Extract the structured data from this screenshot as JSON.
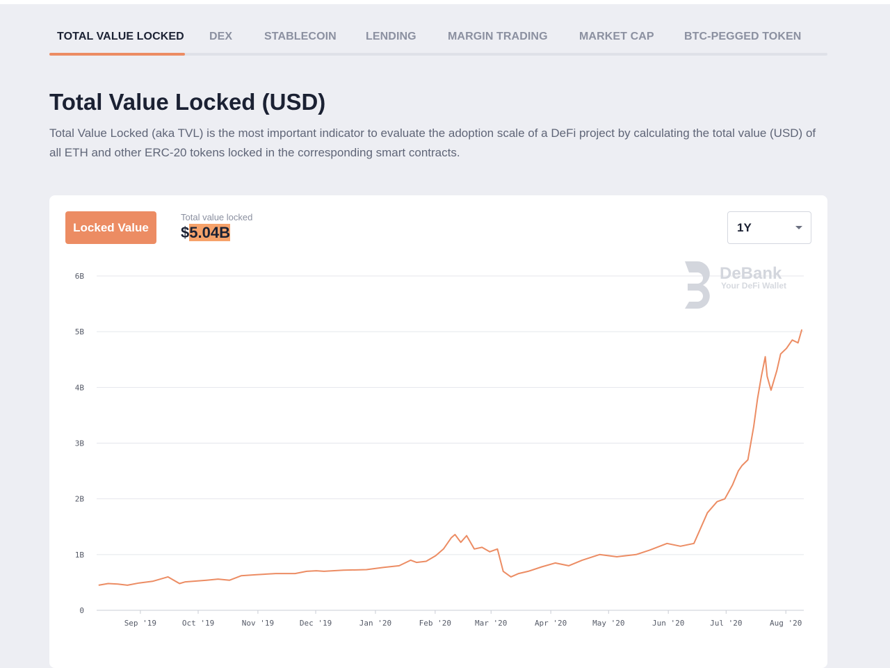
{
  "tabs": [
    {
      "label": "TOTAL VALUE LOCKED",
      "active": true
    },
    {
      "label": "DEX",
      "active": false
    },
    {
      "label": "STABLECOIN",
      "active": false
    },
    {
      "label": "LENDING",
      "active": false
    },
    {
      "label": "MARGIN TRADING",
      "active": false
    },
    {
      "label": "MARKET CAP",
      "active": false
    },
    {
      "label": "BTC-PEGGED TOKEN",
      "active": false
    }
  ],
  "heading": {
    "title": "Total Value Locked (USD)",
    "description": "Total Value Locked (aka TVL) is the most important indicator to evaluate the adoption scale of a DeFi project by calculating the total value (USD) of all ETH and other ERC-20 tokens locked in the corresponding smart contracts."
  },
  "card": {
    "metric_button": "Locked Value",
    "value_label": "Total value locked",
    "value_currency": "$",
    "value_amount": "5.04B",
    "range_select": "1Y"
  },
  "watermark": {
    "brand": "DeBank",
    "tagline": "Your DeFi Wallet"
  },
  "colors": {
    "accent": "#ec8c63",
    "line": "#ec8c63",
    "highlight": "#f6a26a",
    "grid": "#e4e6eb",
    "background": "#edeef3"
  },
  "chart_data": {
    "type": "line",
    "title": "",
    "xlabel": "",
    "ylabel": "",
    "ylim": [
      0,
      6000000000
    ],
    "y_ticks": [
      "0",
      "1B",
      "2B",
      "3B",
      "4B",
      "5B",
      "6B"
    ],
    "x_ticks": [
      "Sep '19",
      "Oct '19",
      "Nov '19",
      "Dec '19",
      "Jan '20",
      "Feb '20",
      "Mar '20",
      "Apr '20",
      "May '20",
      "Jun '20",
      "Jul '20",
      "Aug '20"
    ],
    "grid": "horizontal",
    "series": [
      {
        "values_unit": "USD billions",
        "x": [
          "2019-08-15",
          "2019-08-20",
          "2019-08-25",
          "2019-08-30",
          "2019-09-05",
          "2019-09-12",
          "2019-09-20",
          "2019-09-26",
          "2019-09-29",
          "2019-10-03",
          "2019-10-10",
          "2019-10-16",
          "2019-10-22",
          "2019-10-28",
          "2019-11-01",
          "2019-11-05",
          "2019-11-15",
          "2019-11-25",
          "2019-12-01",
          "2019-12-06",
          "2019-12-10",
          "2019-12-20",
          "2020-01-01",
          "2020-01-10",
          "2020-01-18",
          "2020-01-24",
          "2020-01-27",
          "2020-02-01",
          "2020-02-06",
          "2020-02-10",
          "2020-02-14",
          "2020-02-16",
          "2020-02-19",
          "2020-02-22",
          "2020-02-26",
          "2020-03-01",
          "2020-03-05",
          "2020-03-09",
          "2020-03-12",
          "2020-03-16",
          "2020-03-20",
          "2020-03-25",
          "2020-04-01",
          "2020-04-08",
          "2020-04-15",
          "2020-04-22",
          "2020-05-01",
          "2020-05-10",
          "2020-05-20",
          "2020-05-27",
          "2020-06-05",
          "2020-06-12",
          "2020-06-19",
          "2020-06-26",
          "2020-07-01",
          "2020-07-05",
          "2020-07-09",
          "2020-07-12",
          "2020-07-14",
          "2020-07-17",
          "2020-07-20",
          "2020-07-22",
          "2020-07-24",
          "2020-07-26",
          "2020-07-27",
          "2020-07-29",
          "2020-08-01",
          "2020-08-03",
          "2020-08-06",
          "2020-08-09",
          "2020-08-12",
          "2020-08-14"
        ],
        "values": [
          0.45,
          0.48,
          0.47,
          0.45,
          0.49,
          0.52,
          0.6,
          0.48,
          0.51,
          0.52,
          0.54,
          0.56,
          0.54,
          0.62,
          0.63,
          0.64,
          0.66,
          0.66,
          0.7,
          0.71,
          0.7,
          0.72,
          0.73,
          0.77,
          0.8,
          0.9,
          0.86,
          0.88,
          0.98,
          1.1,
          1.3,
          1.36,
          1.22,
          1.34,
          1.1,
          1.13,
          1.05,
          1.1,
          0.7,
          0.6,
          0.66,
          0.7,
          0.78,
          0.85,
          0.8,
          0.9,
          1.0,
          0.96,
          1.0,
          1.08,
          1.2,
          1.15,
          1.2,
          1.75,
          1.95,
          2.0,
          2.25,
          2.5,
          2.6,
          2.7,
          3.3,
          3.8,
          4.2,
          4.55,
          4.2,
          3.95,
          4.3,
          4.6,
          4.7,
          4.85,
          4.8,
          5.04
        ]
      }
    ]
  }
}
